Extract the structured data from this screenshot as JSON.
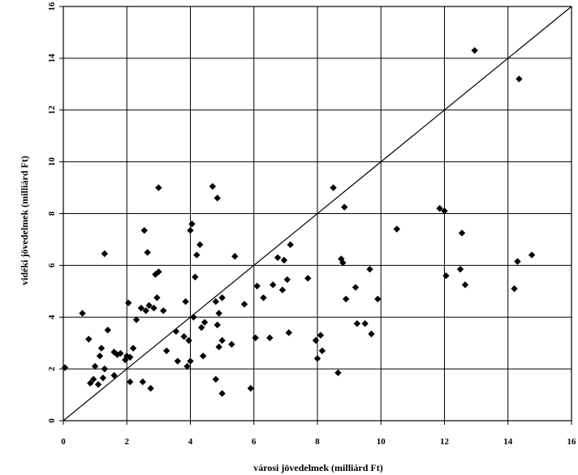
{
  "chart_data": {
    "type": "scatter",
    "title": "",
    "xlabel": "városi jövedelmek (milliárd Ft)",
    "ylabel": "vidéki jövedelmek (milliárd Ft)",
    "xlim": [
      0,
      16
    ],
    "ylim": [
      0,
      16
    ],
    "xticks": [
      "0",
      "2",
      "4",
      "6",
      "8",
      "10",
      "12",
      "14",
      "16"
    ],
    "yticks": [
      "0",
      "2",
      "4",
      "6",
      "8",
      "10",
      "12",
      "14",
      "16"
    ],
    "grid": true,
    "reference_line": {
      "from": [
        0,
        0
      ],
      "to": [
        16,
        16
      ]
    },
    "marker": "diamond",
    "color": "#000000",
    "points": [
      [
        0.05,
        2.05
      ],
      [
        0.6,
        4.15
      ],
      [
        0.8,
        3.15
      ],
      [
        0.85,
        1.45
      ],
      [
        0.95,
        1.6
      ],
      [
        1.0,
        2.1
      ],
      [
        1.1,
        1.4
      ],
      [
        1.15,
        2.5
      ],
      [
        1.2,
        2.8
      ],
      [
        1.25,
        1.65
      ],
      [
        1.3,
        2.0
      ],
      [
        1.3,
        6.45
      ],
      [
        1.4,
        3.5
      ],
      [
        1.6,
        1.75
      ],
      [
        1.6,
        2.65
      ],
      [
        1.7,
        2.55
      ],
      [
        1.8,
        2.6
      ],
      [
        1.95,
        2.35
      ],
      [
        2.0,
        2.5
      ],
      [
        2.05,
        4.55
      ],
      [
        2.1,
        1.5
      ],
      [
        2.1,
        2.45
      ],
      [
        2.2,
        2.8
      ],
      [
        2.3,
        3.9
      ],
      [
        2.45,
        4.35
      ],
      [
        2.5,
        1.5
      ],
      [
        2.55,
        7.35
      ],
      [
        2.6,
        4.25
      ],
      [
        2.65,
        6.5
      ],
      [
        2.7,
        4.45
      ],
      [
        2.75,
        1.25
      ],
      [
        2.85,
        4.35
      ],
      [
        2.9,
        5.65
      ],
      [
        2.95,
        4.75
      ],
      [
        3.0,
        5.75
      ],
      [
        3.0,
        9.0
      ],
      [
        3.15,
        4.25
      ],
      [
        3.25,
        2.7
      ],
      [
        3.55,
        3.45
      ],
      [
        3.6,
        2.3
      ],
      [
        3.8,
        3.25
      ],
      [
        3.85,
        4.6
      ],
      [
        3.9,
        2.1
      ],
      [
        3.95,
        3.1
      ],
      [
        4.0,
        2.3
      ],
      [
        4.0,
        7.35
      ],
      [
        4.05,
        7.6
      ],
      [
        4.1,
        4.0
      ],
      [
        4.15,
        5.55
      ],
      [
        4.2,
        6.4
      ],
      [
        4.3,
        6.8
      ],
      [
        4.35,
        3.6
      ],
      [
        4.4,
        2.5
      ],
      [
        4.45,
        3.8
      ],
      [
        4.7,
        9.05
      ],
      [
        4.8,
        4.6
      ],
      [
        4.8,
        1.6
      ],
      [
        4.85,
        3.7
      ],
      [
        4.85,
        8.6
      ],
      [
        4.9,
        2.85
      ],
      [
        4.9,
        4.15
      ],
      [
        5.0,
        3.1
      ],
      [
        5.0,
        4.75
      ],
      [
        5.0,
        1.05
      ],
      [
        5.3,
        2.95
      ],
      [
        5.4,
        6.35
      ],
      [
        5.7,
        4.5
      ],
      [
        5.9,
        1.25
      ],
      [
        6.05,
        3.2
      ],
      [
        6.1,
        5.2
      ],
      [
        6.3,
        4.75
      ],
      [
        6.5,
        3.2
      ],
      [
        6.6,
        5.25
      ],
      [
        6.75,
        6.3
      ],
      [
        6.9,
        5.05
      ],
      [
        6.95,
        6.2
      ],
      [
        7.05,
        5.45
      ],
      [
        7.1,
        3.4
      ],
      [
        7.15,
        6.8
      ],
      [
        7.7,
        5.5
      ],
      [
        7.95,
        3.1
      ],
      [
        8.0,
        2.4
      ],
      [
        8.1,
        3.3
      ],
      [
        8.15,
        2.7
      ],
      [
        8.5,
        9.0
      ],
      [
        8.65,
        1.85
      ],
      [
        8.75,
        6.25
      ],
      [
        8.8,
        6.1
      ],
      [
        8.85,
        8.25
      ],
      [
        8.9,
        4.7
      ],
      [
        9.2,
        5.15
      ],
      [
        9.25,
        3.75
      ],
      [
        9.5,
        3.75
      ],
      [
        9.65,
        5.85
      ],
      [
        9.7,
        3.35
      ],
      [
        9.9,
        4.7
      ],
      [
        10.5,
        7.4
      ],
      [
        11.85,
        8.2
      ],
      [
        12.0,
        8.1
      ],
      [
        12.05,
        5.6
      ],
      [
        12.5,
        5.85
      ],
      [
        12.55,
        7.25
      ],
      [
        12.65,
        5.25
      ],
      [
        12.95,
        14.3
      ],
      [
        14.2,
        5.1
      ],
      [
        14.3,
        6.15
      ],
      [
        14.35,
        13.2
      ],
      [
        14.75,
        6.4
      ]
    ]
  }
}
